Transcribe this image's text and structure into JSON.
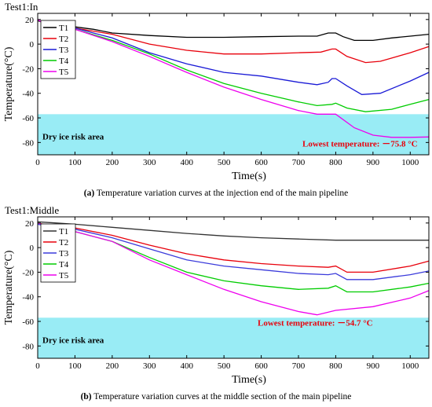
{
  "chart_data": [
    {
      "type": "line",
      "title": "Test1:In",
      "xlabel": "Time(s)",
      "ylabel": "Temperature(°C)",
      "xlim": [
        0,
        1050
      ],
      "ylim": [
        -90,
        25
      ],
      "xticks": [
        "0",
        "100",
        "200",
        "300",
        "400",
        "500",
        "600",
        "700",
        "800",
        "900",
        "1000"
      ],
      "yticks": [
        "20",
        "0",
        "-20",
        "-40",
        "-60",
        "-80"
      ],
      "legend_position": "upper-left",
      "risk_area": {
        "label": "Dry ice risk area",
        "y_from": -90,
        "y_to": -57,
        "color": "#99ecf5"
      },
      "annotation": "Lowest temperature: －75.8 °C",
      "annotation_color": "#e8000b",
      "caption_label": "(a)",
      "caption_text": " Temperature variation curves at the injection end of the main pipeline",
      "series": [
        {
          "name": "T1",
          "color": "#000000",
          "points": [
            [
              0,
              19
            ],
            [
              20,
              17
            ],
            [
              50,
              16
            ],
            [
              100,
              14
            ],
            [
              150,
              12
            ],
            [
              200,
              9
            ],
            [
              300,
              7
            ],
            [
              400,
              5.5
            ],
            [
              500,
              5.5
            ],
            [
              600,
              6
            ],
            [
              700,
              6.5
            ],
            [
              750,
              6.5
            ],
            [
              780,
              9
            ],
            [
              800,
              9
            ],
            [
              820,
              6
            ],
            [
              850,
              3
            ],
            [
              900,
              3
            ],
            [
              950,
              5
            ],
            [
              1000,
              6.5
            ],
            [
              1050,
              8
            ]
          ]
        },
        {
          "name": "T2",
          "color": "#e8000b",
          "points": [
            [
              0,
              20
            ],
            [
              20,
              16
            ],
            [
              100,
              13
            ],
            [
              200,
              8
            ],
            [
              300,
              0
            ],
            [
              400,
              -5
            ],
            [
              500,
              -8
            ],
            [
              600,
              -8
            ],
            [
              700,
              -7
            ],
            [
              760,
              -6.5
            ],
            [
              790,
              -4
            ],
            [
              800,
              -4
            ],
            [
              830,
              -10
            ],
            [
              880,
              -15
            ],
            [
              920,
              -14
            ],
            [
              1000,
              -7
            ],
            [
              1050,
              -2
            ]
          ]
        },
        {
          "name": "T3",
          "color": "#1a1ad6",
          "points": [
            [
              0,
              20
            ],
            [
              20,
              16
            ],
            [
              100,
              13
            ],
            [
              200,
              5
            ],
            [
              300,
              -7
            ],
            [
              400,
              -16
            ],
            [
              500,
              -23
            ],
            [
              600,
              -26
            ],
            [
              700,
              -31
            ],
            [
              750,
              -33
            ],
            [
              780,
              -31
            ],
            [
              790,
              -28
            ],
            [
              800,
              -28
            ],
            [
              830,
              -34
            ],
            [
              870,
              -41
            ],
            [
              920,
              -40
            ],
            [
              1000,
              -30
            ],
            [
              1050,
              -23
            ]
          ]
        },
        {
          "name": "T4",
          "color": "#00cc00",
          "points": [
            [
              0,
              20
            ],
            [
              20,
              16
            ],
            [
              100,
              12
            ],
            [
              200,
              3
            ],
            [
              300,
              -8
            ],
            [
              400,
              -21
            ],
            [
              500,
              -32
            ],
            [
              600,
              -40
            ],
            [
              700,
              -47
            ],
            [
              750,
              -50
            ],
            [
              790,
              -49
            ],
            [
              800,
              -48
            ],
            [
              830,
              -52
            ],
            [
              880,
              -55
            ],
            [
              950,
              -53
            ],
            [
              1000,
              -49
            ],
            [
              1050,
              -45
            ]
          ]
        },
        {
          "name": "T5",
          "color": "#ee00ee",
          "points": [
            [
              0,
              20
            ],
            [
              20,
              16
            ],
            [
              100,
              12
            ],
            [
              200,
              2
            ],
            [
              300,
              -10
            ],
            [
              400,
              -23
            ],
            [
              500,
              -35
            ],
            [
              600,
              -45
            ],
            [
              700,
              -54
            ],
            [
              750,
              -57
            ],
            [
              790,
              -57
            ],
            [
              800,
              -57
            ],
            [
              850,
              -68
            ],
            [
              900,
              -74
            ],
            [
              950,
              -75.8
            ],
            [
              1000,
              -75.8
            ],
            [
              1050,
              -75.5
            ]
          ]
        }
      ]
    },
    {
      "type": "line",
      "title": "Test1:Middle",
      "xlabel": "Time(s)",
      "ylabel": "Temperature(°C)",
      "xlim": [
        0,
        1050
      ],
      "ylim": [
        -90,
        25
      ],
      "xticks": [
        "0",
        "100",
        "200",
        "300",
        "400",
        "500",
        "600",
        "700",
        "800",
        "900",
        "1000"
      ],
      "yticks": [
        "20",
        "0",
        "-20",
        "-40",
        "-60",
        "-80"
      ],
      "legend_position": "upper-left",
      "risk_area": {
        "label": "Dry ice risk area",
        "y_from": -90,
        "y_to": -57,
        "color": "#99ecf5"
      },
      "annotation": "Lowest temperature: －54.7 °C",
      "annotation_color": "#e8000b",
      "caption_label": "(b)",
      "caption_text": " Temperature variation curves at the middle section of the main pipeline",
      "series": [
        {
          "name": "T1",
          "color": "#333333",
          "points": [
            [
              0,
              21
            ],
            [
              50,
              20
            ],
            [
              100,
              19
            ],
            [
              200,
              16.5
            ],
            [
              300,
              14
            ],
            [
              400,
              11.5
            ],
            [
              500,
              9.5
            ],
            [
              600,
              8
            ],
            [
              700,
              7
            ],
            [
              800,
              6
            ],
            [
              900,
              6
            ],
            [
              1000,
              6
            ],
            [
              1050,
              6
            ]
          ]
        },
        {
          "name": "T2",
          "color": "#e8000b",
          "points": [
            [
              0,
              20
            ],
            [
              30,
              18
            ],
            [
              100,
              16
            ],
            [
              200,
              10
            ],
            [
              300,
              2
            ],
            [
              400,
              -5
            ],
            [
              500,
              -10
            ],
            [
              600,
              -13
            ],
            [
              700,
              -15
            ],
            [
              780,
              -16
            ],
            [
              800,
              -15
            ],
            [
              830,
              -20
            ],
            [
              900,
              -20
            ],
            [
              1000,
              -15
            ],
            [
              1050,
              -11
            ]
          ]
        },
        {
          "name": "T3",
          "color": "#3b3bdb",
          "points": [
            [
              0,
              19
            ],
            [
              30,
              17
            ],
            [
              100,
              15
            ],
            [
              200,
              8
            ],
            [
              300,
              -1
            ],
            [
              400,
              -10
            ],
            [
              500,
              -15
            ],
            [
              600,
              -18
            ],
            [
              700,
              -21
            ],
            [
              780,
              -22
            ],
            [
              800,
              -21
            ],
            [
              830,
              -26
            ],
            [
              900,
              -26
            ],
            [
              1000,
              -22
            ],
            [
              1050,
              -19
            ]
          ]
        },
        {
          "name": "T4",
          "color": "#00cc00",
          "points": [
            [
              0,
              20
            ],
            [
              30,
              17
            ],
            [
              100,
              13
            ],
            [
              200,
              5
            ],
            [
              300,
              -8
            ],
            [
              400,
              -20
            ],
            [
              500,
              -27
            ],
            [
              600,
              -31
            ],
            [
              700,
              -34
            ],
            [
              780,
              -33
            ],
            [
              800,
              -31
            ],
            [
              830,
              -36
            ],
            [
              900,
              -36
            ],
            [
              1000,
              -32
            ],
            [
              1050,
              -29
            ]
          ]
        },
        {
          "name": "T5",
          "color": "#ee00ee",
          "points": [
            [
              0,
              20
            ],
            [
              30,
              17
            ],
            [
              100,
              13
            ],
            [
              200,
              5
            ],
            [
              300,
              -10
            ],
            [
              400,
              -22
            ],
            [
              500,
              -34
            ],
            [
              600,
              -44
            ],
            [
              700,
              -52
            ],
            [
              750,
              -54.7
            ],
            [
              800,
              -51
            ],
            [
              900,
              -48
            ],
            [
              1000,
              -41
            ],
            [
              1050,
              -35
            ]
          ]
        }
      ]
    }
  ]
}
